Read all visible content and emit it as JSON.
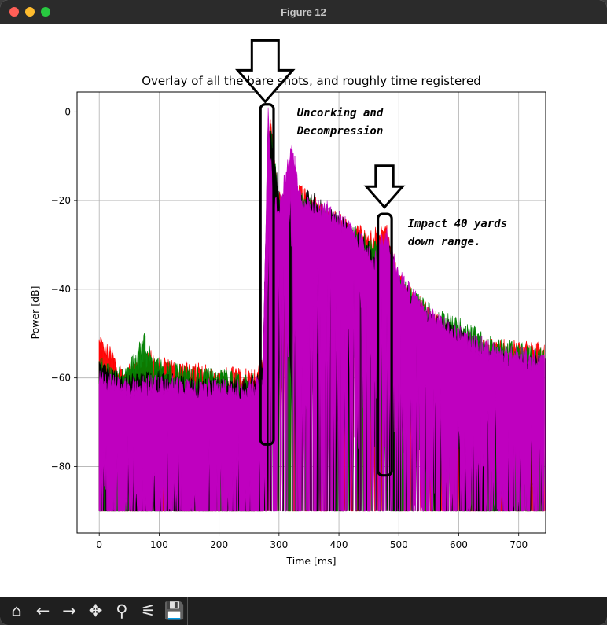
{
  "window": {
    "title": "Figure 12"
  },
  "toolbar": {
    "buttons": [
      {
        "name": "home-icon",
        "glyph": "⌂"
      },
      {
        "name": "back-arrow-icon",
        "glyph": "←"
      },
      {
        "name": "forward-arrow-icon",
        "glyph": "→"
      },
      {
        "name": "pan-icon",
        "glyph": "✥"
      },
      {
        "name": "zoom-icon",
        "glyph": "⚲"
      },
      {
        "name": "configure-subplots-icon",
        "glyph": "⚟"
      },
      {
        "name": "save-icon",
        "glyph": "💾"
      }
    ]
  },
  "chart_data": {
    "type": "area",
    "title": "Overlay of all the bare shots, and roughly time registered",
    "xlabel": "Time [ms]",
    "ylabel": "Power [dB]",
    "xlim": [
      -37,
      745
    ],
    "ylim": [
      -95,
      4.5
    ],
    "xticks": [
      0,
      100,
      200,
      300,
      400,
      500,
      600,
      700
    ],
    "yticks": [
      0,
      -20,
      -40,
      -60,
      -80
    ],
    "grid": true,
    "colors": {
      "red": "#ff0000",
      "green": "#008000",
      "black": "#000000",
      "magenta": "#bf00bf"
    },
    "series": [
      {
        "color": "red",
        "envelope": [
          [
            0,
            -52
          ],
          [
            20,
            -55
          ],
          [
            40,
            -59
          ],
          [
            60,
            -58
          ],
          [
            80,
            -55
          ],
          [
            100,
            -57
          ],
          [
            140,
            -58
          ],
          [
            200,
            -59
          ],
          [
            260,
            -60
          ],
          [
            273,
            -57
          ],
          [
            285,
            -2
          ],
          [
            300,
            -20
          ],
          [
            340,
            -18
          ],
          [
            380,
            -23
          ],
          [
            420,
            -26
          ],
          [
            450,
            -29
          ],
          [
            478,
            -26
          ],
          [
            500,
            -38
          ],
          [
            540,
            -44
          ],
          [
            580,
            -49
          ],
          [
            620,
            -51
          ],
          [
            660,
            -53
          ],
          [
            744,
            -54
          ]
        ],
        "floor": -90
      },
      {
        "color": "green",
        "envelope": [
          [
            0,
            -57
          ],
          [
            40,
            -60
          ],
          [
            60,
            -56
          ],
          [
            76,
            -51
          ],
          [
            90,
            -57
          ],
          [
            140,
            -59
          ],
          [
            200,
            -60
          ],
          [
            260,
            -61
          ],
          [
            273,
            -58
          ],
          [
            285,
            -2
          ],
          [
            300,
            -21
          ],
          [
            340,
            -20
          ],
          [
            380,
            -24
          ],
          [
            420,
            -27
          ],
          [
            470,
            -32
          ],
          [
            500,
            -39
          ],
          [
            560,
            -46
          ],
          [
            600,
            -48
          ],
          [
            660,
            -53
          ],
          [
            744,
            -55
          ]
        ],
        "floor": -90
      },
      {
        "color": "black",
        "envelope": [
          [
            0,
            -58
          ],
          [
            40,
            -61
          ],
          [
            100,
            -60
          ],
          [
            160,
            -62
          ],
          [
            220,
            -62
          ],
          [
            260,
            -61
          ],
          [
            273,
            -58
          ],
          [
            282,
            -1
          ],
          [
            300,
            -19
          ],
          [
            330,
            -20
          ],
          [
            350,
            -19
          ],
          [
            380,
            -23
          ],
          [
            420,
            -27
          ],
          [
            470,
            -34
          ],
          [
            480,
            -30
          ],
          [
            500,
            -38
          ],
          [
            540,
            -46
          ],
          [
            600,
            -50
          ],
          [
            660,
            -56
          ],
          [
            744,
            -57
          ]
        ],
        "floor": -90
      },
      {
        "color": "magenta",
        "envelope": [
          [
            0,
            -60
          ],
          [
            40,
            -62
          ],
          [
            100,
            -61
          ],
          [
            160,
            -62
          ],
          [
            220,
            -62
          ],
          [
            260,
            -62
          ],
          [
            273,
            -59
          ],
          [
            282,
            0
          ],
          [
            290,
            -20
          ],
          [
            300,
            -22
          ],
          [
            320,
            -8
          ],
          [
            340,
            -20
          ],
          [
            380,
            -22
          ],
          [
            420,
            -26
          ],
          [
            460,
            -33
          ],
          [
            478,
            -27
          ],
          [
            500,
            -37
          ],
          [
            540,
            -44
          ],
          [
            600,
            -50
          ],
          [
            660,
            -54
          ],
          [
            744,
            -56
          ]
        ],
        "floor": -90
      }
    ],
    "annotations": [
      {
        "text_lines": [
          "Uncorking and",
          "Decompression"
        ],
        "x": 330,
        "y": -1
      },
      {
        "text_lines": [
          "Impact 40 yards",
          "down range."
        ],
        "x": 515,
        "y": -26
      }
    ],
    "highlight_boxes": [
      {
        "x_range": [
          269,
          291
        ],
        "y_range": [
          -75,
          1.7
        ]
      },
      {
        "x_range": [
          465,
          488
        ],
        "y_range": [
          -82,
          -23
        ]
      }
    ],
    "arrows": [
      {
        "tip_x": 277,
        "tip_y": 2.3
      },
      {
        "tip_x": 476,
        "tip_y": -21.5
      }
    ]
  }
}
